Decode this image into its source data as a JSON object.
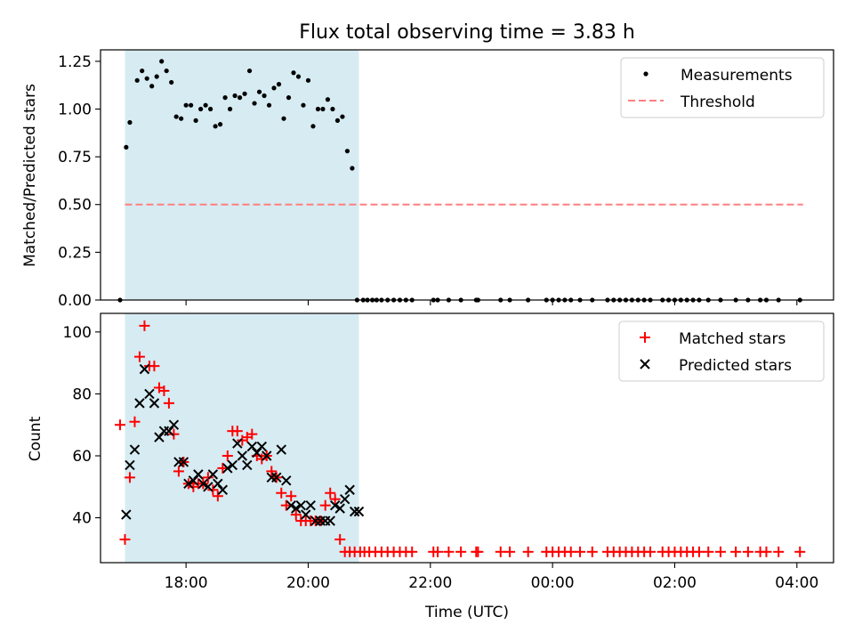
{
  "chart_data": [
    {
      "type": "scatter",
      "title": "Flux total observing time = 3.83 h",
      "ylabel": "Matched/Predicted stars",
      "xlim": [
        16.6,
        28.6
      ],
      "ylim": [
        0,
        1.31
      ],
      "yticks": [
        "0.00",
        "0.25",
        "0.50",
        "0.75",
        "1.00",
        "1.25"
      ],
      "ytick_values": [
        0,
        0.25,
        0.5,
        0.75,
        1.0,
        1.25
      ],
      "shaded_span": [
        17.0,
        20.83
      ],
      "shaded_color": "#add8e6",
      "legend_position": "upper right",
      "legend": [
        "Measurements",
        "Threshold"
      ],
      "threshold": {
        "label": "Threshold",
        "value": 0.5,
        "x_range": [
          17.0,
          28.1
        ],
        "color": "#ff7f7f"
      },
      "series": [
        {
          "name": "Measurements",
          "marker": "dot",
          "color": "#000000",
          "x": [
            16.92,
            17.02,
            17.08,
            17.2,
            17.28,
            17.36,
            17.44,
            17.52,
            17.6,
            17.68,
            17.76,
            17.84,
            17.92,
            18.0,
            18.08,
            18.16,
            18.24,
            18.32,
            18.4,
            18.48,
            18.56,
            18.64,
            18.72,
            18.8,
            18.88,
            18.96,
            19.04,
            19.12,
            19.2,
            19.28,
            19.36,
            19.44,
            19.52,
            19.6,
            19.68,
            19.76,
            19.84,
            19.92,
            20.0,
            20.08,
            20.16,
            20.24,
            20.32,
            20.4,
            20.48,
            20.56,
            20.64,
            20.72,
            20.8,
            20.9,
            20.97,
            21.05,
            21.12,
            21.2,
            21.3,
            21.4,
            21.5,
            21.6,
            21.7,
            22.05,
            22.12,
            22.3,
            22.5,
            22.75,
            22.78,
            23.15,
            23.3,
            23.6,
            23.9,
            24.0,
            24.1,
            24.2,
            24.3,
            24.45,
            24.65,
            24.9,
            25.0,
            25.1,
            25.2,
            25.3,
            25.4,
            25.5,
            25.6,
            25.8,
            25.9,
            26.0,
            26.1,
            26.2,
            26.3,
            26.4,
            26.55,
            26.75,
            27.0,
            27.2,
            27.4,
            27.5,
            27.7,
            28.05
          ],
          "y": [
            0,
            0.8,
            0.93,
            1.15,
            1.2,
            1.16,
            1.12,
            1.17,
            1.25,
            1.2,
            1.14,
            0.96,
            0.95,
            1.02,
            1.02,
            0.94,
            1.0,
            1.02,
            1.0,
            0.91,
            0.92,
            1.06,
            1.0,
            1.07,
            1.06,
            1.08,
            1.2,
            1.03,
            1.09,
            1.07,
            1.02,
            1.11,
            1.13,
            0.95,
            1.06,
            1.19,
            1.17,
            1.02,
            1.15,
            0.91,
            1.0,
            1.0,
            1.05,
            1.0,
            0.94,
            0.96,
            0.78,
            0.69,
            0,
            0,
            0,
            0,
            0,
            0,
            0,
            0,
            0,
            0,
            0,
            0,
            0,
            0,
            0,
            0,
            0,
            0,
            0,
            0,
            0,
            0,
            0,
            0,
            0,
            0,
            0,
            0,
            0,
            0,
            0,
            0,
            0,
            0,
            0,
            0,
            0,
            0,
            0,
            0,
            0,
            0,
            0,
            0,
            0,
            0,
            0,
            0,
            0,
            0
          ]
        }
      ]
    },
    {
      "type": "scatter",
      "ylabel": "Count",
      "xlabel": "Time (UTC)",
      "xlim": [
        16.6,
        28.6
      ],
      "ylim": [
        25.5,
        106
      ],
      "yticks": [
        "40",
        "60",
        "80",
        "100"
      ],
      "ytick_values": [
        40,
        60,
        80,
        100
      ],
      "xticks": [
        "18:00",
        "20:00",
        "22:00",
        "00:00",
        "02:00",
        "04:00"
      ],
      "xtick_values": [
        18,
        20,
        22,
        24,
        26,
        28
      ],
      "shaded_span": [
        17.0,
        20.83
      ],
      "shaded_color": "#add8e6",
      "legend_position": "upper right",
      "legend": [
        "Matched stars",
        "Predicted stars"
      ],
      "series": [
        {
          "name": "Matched stars",
          "marker": "plus",
          "color": "#ff0000",
          "x": [
            16.92,
            17.0,
            17.08,
            17.16,
            17.24,
            17.32,
            17.4,
            17.48,
            17.56,
            17.64,
            17.72,
            17.8,
            17.88,
            17.96,
            18.04,
            18.12,
            18.2,
            18.28,
            18.36,
            18.44,
            18.52,
            18.6,
            18.68,
            18.76,
            18.84,
            18.92,
            19.0,
            19.08,
            19.16,
            19.24,
            19.32,
            19.4,
            19.48,
            19.56,
            19.64,
            19.72,
            19.8,
            19.88,
            19.96,
            20.04,
            20.12,
            20.2,
            20.28,
            20.36,
            20.44,
            20.52,
            20.6,
            20.68,
            20.76,
            20.85,
            20.92,
            21.0,
            21.1,
            21.2,
            21.3,
            21.4,
            21.5,
            21.6,
            21.7,
            22.05,
            22.12,
            22.3,
            22.5,
            22.75,
            22.78,
            23.15,
            23.3,
            23.6,
            23.9,
            24.0,
            24.1,
            24.2,
            24.3,
            24.45,
            24.65,
            24.9,
            25.0,
            25.1,
            25.2,
            25.3,
            25.4,
            25.5,
            25.6,
            25.8,
            25.9,
            26.0,
            26.1,
            26.2,
            26.3,
            26.4,
            26.55,
            26.75,
            27.0,
            27.2,
            27.4,
            27.5,
            27.7,
            28.05
          ],
          "y": [
            70,
            33,
            53,
            71,
            92,
            102,
            89,
            89,
            82,
            81,
            77,
            67,
            55,
            58,
            51,
            50,
            51,
            51,
            53,
            49,
            47,
            56,
            60,
            68,
            68,
            65,
            66,
            67,
            60,
            59,
            60,
            55,
            53,
            48,
            44,
            47,
            41,
            39,
            39,
            39,
            39,
            39,
            44,
            48,
            46,
            33,
            29,
            29,
            29,
            29,
            29,
            29,
            29,
            29,
            29,
            29,
            29,
            29,
            29,
            29,
            29,
            29,
            29,
            29,
            29,
            29,
            29,
            29,
            29,
            29,
            29,
            29,
            29,
            29,
            29,
            29,
            29,
            29,
            29,
            29,
            29,
            29,
            29,
            29,
            29,
            29,
            29,
            29,
            29,
            29,
            29,
            29,
            29,
            29,
            29,
            29,
            29,
            29
          ]
        },
        {
          "name": "Predicted stars",
          "marker": "x",
          "color": "#000000",
          "x": [
            17.02,
            17.08,
            17.16,
            17.24,
            17.32,
            17.4,
            17.48,
            17.56,
            17.64,
            17.72,
            17.8,
            17.88,
            17.96,
            18.04,
            18.12,
            18.2,
            18.28,
            18.36,
            18.44,
            18.52,
            18.6,
            18.68,
            18.76,
            18.84,
            18.92,
            19.0,
            19.08,
            19.16,
            19.24,
            19.32,
            19.4,
            19.48,
            19.56,
            19.64,
            19.72,
            19.8,
            19.88,
            19.96,
            20.04,
            20.12,
            20.2,
            20.28,
            20.36,
            20.44,
            20.52,
            20.6,
            20.68,
            20.76,
            20.83
          ],
          "y": [
            41,
            57,
            62,
            77,
            88,
            80,
            77,
            66,
            68,
            68,
            70,
            58,
            58,
            51,
            52,
            54,
            51,
            50,
            54,
            51,
            49,
            56,
            57,
            64,
            60,
            57,
            63,
            61,
            63,
            60,
            53,
            53,
            62,
            52,
            44,
            43,
            44,
            41,
            44,
            39,
            39,
            39,
            39,
            44,
            43,
            46,
            49,
            42,
            42
          ]
        }
      ]
    }
  ]
}
